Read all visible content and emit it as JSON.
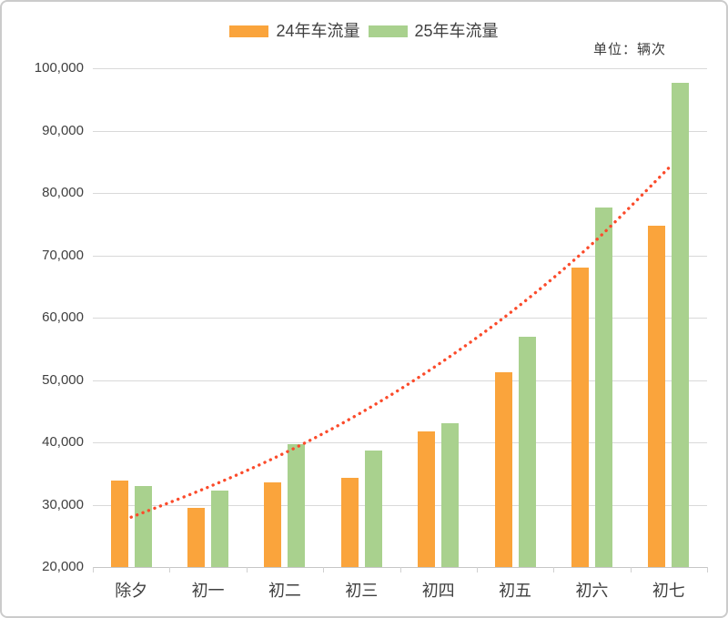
{
  "unit_label": "单位：辆次",
  "legend": {
    "items": [
      {
        "label": "24年车流量",
        "color": "#FAA43C"
      },
      {
        "label": "25年车流量",
        "color": "#A9D18E"
      }
    ]
  },
  "chart_data": {
    "type": "bar",
    "title": "",
    "unit": "辆次",
    "categories": [
      "除夕",
      "初一",
      "初二",
      "初三",
      "初四",
      "初五",
      "初六",
      "初七"
    ],
    "series": [
      {
        "name": "24年车流量",
        "color": "#FAA43C",
        "values": [
          33900,
          29500,
          33600,
          34300,
          41700,
          51200,
          68100,
          74800
        ]
      },
      {
        "name": "25年车流量",
        "color": "#A9D18E",
        "values": [
          33000,
          32200,
          39700,
          38700,
          43100,
          56900,
          77700,
          97700
        ]
      }
    ],
    "trend_line": {
      "name": "趋势线",
      "style": "dotted",
      "color": "#FB4B2B",
      "values": [
        28000,
        32800,
        38300,
        44800,
        52500,
        61400,
        71800,
        84000
      ]
    },
    "ylim": [
      20000,
      100000
    ],
    "ytick_step": 10000,
    "ytick_labels_top_to_bottom": [
      "100,000",
      "90,000",
      "80,000",
      "70,000",
      "60,000",
      "50,000",
      "40,000",
      "30,000",
      "20,000"
    ],
    "grid": true,
    "legend_position": "top-center"
  },
  "colors": {
    "grid": "#D9D9D9",
    "axis": "#C6C6C6",
    "text": "#3F3F3F",
    "card_border": "#CBCBCB"
  }
}
